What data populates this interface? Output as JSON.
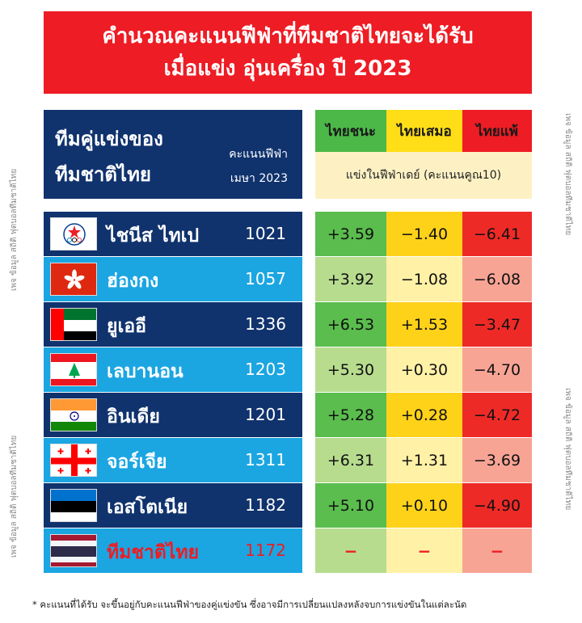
{
  "header": {
    "line1": "คำนวณคะแนนฟีฟ่าที่ทีมชาติไทยจะได้รับ",
    "line2": "เมื่อแข่ง อุ่นเครื่อง ปี 2023"
  },
  "side_credit": "เพจ ข้อมูล สถิติ ฟุตบอลทีมชาติไทย",
  "team_header": {
    "title1": "ทีมคู่แข่งของ",
    "title2": "ทีมชาติไทย",
    "points_label": "คะแนนฟีฟ่า",
    "points_date": "เมษา 2023"
  },
  "result_header": {
    "win": "ไทยชนะ",
    "draw": "ไทยเสมอ",
    "lose": "ไทยแพ้",
    "subtitle": "แข่งในฟีฟ่าเดย์  (คะแนนคูณ10)"
  },
  "rows": [
    {
      "flag": "chinese-taipei-flag",
      "name": "ไชนีส ไทเป",
      "points": "1021",
      "win": "+3.59",
      "draw": "−1.40",
      "lose": "−6.41"
    },
    {
      "flag": "hong-kong-flag",
      "name": "ฮ่องกง",
      "points": "1057",
      "win": "+3.92",
      "draw": "−1.08",
      "lose": "−6.08"
    },
    {
      "flag": "uae-flag",
      "name": "ยูเออี",
      "points": "1336",
      "win": "+6.53",
      "draw": "+1.53",
      "lose": "−3.47"
    },
    {
      "flag": "lebanon-flag",
      "name": "เลบานอน",
      "points": "1203",
      "win": "+5.30",
      "draw": "+0.30",
      "lose": "−4.70"
    },
    {
      "flag": "india-flag",
      "name": "อินเดีย",
      "points": "1201",
      "win": "+5.28",
      "draw": "+0.28",
      "lose": "−4.72"
    },
    {
      "flag": "georgia-flag",
      "name": "จอร์เจีย",
      "points": "1311",
      "win": "+6.31",
      "draw": "+1.31",
      "lose": "−3.69"
    },
    {
      "flag": "estonia-flag",
      "name": "เอสโตเนีย",
      "points": "1182",
      "win": "+5.10",
      "draw": "+0.10",
      "lose": "−4.90"
    },
    {
      "flag": "thailand-flag",
      "name": "ทีมชาติไทย",
      "points": "1172",
      "win": "−",
      "draw": "−",
      "lose": "−"
    }
  ],
  "footnote": "*  คะแนนที่ได้รับ  จะขึ้นอยู่กับคะแนนฟีฟ่าของคู่แข่งขัน  ซึ่งอาจมีการเปลี่ยนแปลงหลังจบการแข่งขันในแต่ละนัด",
  "colors": {
    "header_red": "#ee1c24",
    "navy": "#10336e",
    "cyan": "#1ba6e2",
    "green": "#4cb848",
    "yellow": "#ffde17",
    "red": "#ee1c24"
  }
}
